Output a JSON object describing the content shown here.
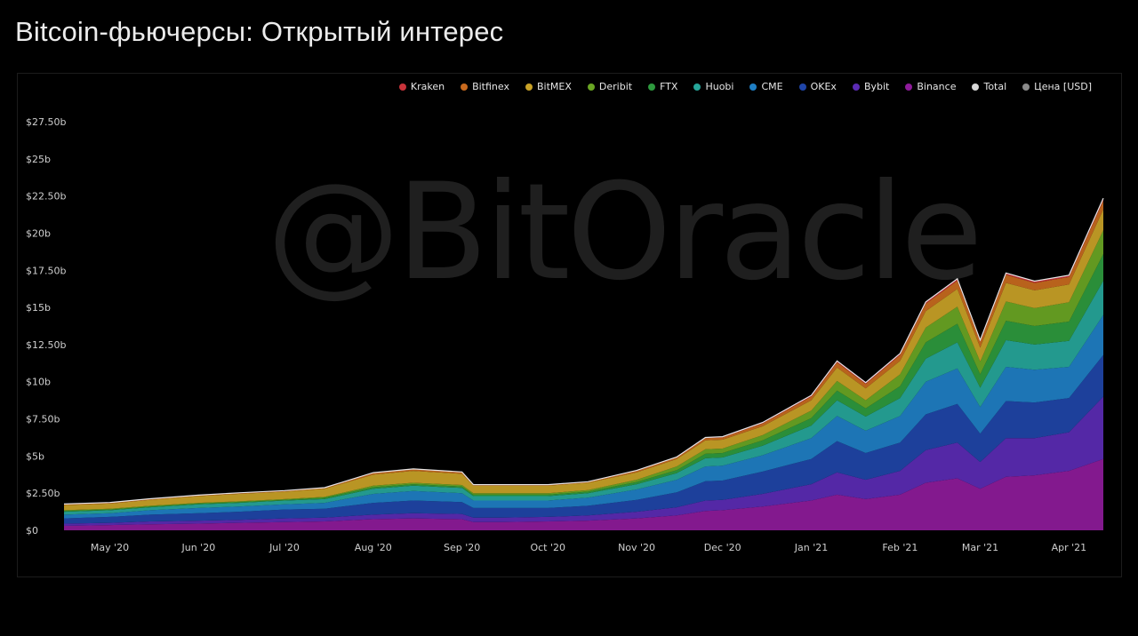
{
  "page": {
    "title": "Bitcoin-фьючерсы: Открытый интерес",
    "watermark": "@BitOracle"
  },
  "legend": [
    {
      "label": "Kraken",
      "color": "#c8333a",
      "icon": "circle-icon"
    },
    {
      "label": "Bitfinex",
      "color": "#c86a1e",
      "icon": "circle-icon"
    },
    {
      "label": "BitMEX",
      "color": "#c9a227",
      "icon": "circle-icon"
    },
    {
      "label": "Deribit",
      "color": "#6aa624",
      "icon": "circle-icon"
    },
    {
      "label": "FTX",
      "color": "#2e9a3e",
      "icon": "circle-icon"
    },
    {
      "label": "Huobi",
      "color": "#26a69a",
      "icon": "circle-icon"
    },
    {
      "label": "CME",
      "color": "#1f7fc4",
      "icon": "circle-icon"
    },
    {
      "label": "OKEx",
      "color": "#1f45a8",
      "icon": "circle-icon"
    },
    {
      "label": "Bybit",
      "color": "#5b2bb4",
      "icon": "circle-icon"
    },
    {
      "label": "Binance",
      "color": "#8e1b9a",
      "icon": "circle-icon"
    },
    {
      "label": "Total",
      "color": "#d9d9d9",
      "icon": "circle-icon"
    },
    {
      "label": "Цена [USD]",
      "color": "#8a8a8a",
      "icon": "circle-icon"
    }
  ],
  "chart_data": {
    "type": "area",
    "stacked": true,
    "title": "Bitcoin-фьючерсы: Открытый интерес",
    "xlabel": "",
    "ylabel": "",
    "ylim": [
      0,
      27.5
    ],
    "y_unit": "billion USD",
    "y_ticks": [
      0,
      2.5,
      5,
      7.5,
      10,
      12.5,
      15,
      17.5,
      20,
      22.5,
      25,
      27.5
    ],
    "y_tick_labels": [
      "$0",
      "$2.50b",
      "$5b",
      "$7.50b",
      "$10b",
      "$12.50b",
      "$15b",
      "$17.50b",
      "$20b",
      "$22.50b",
      "$25b",
      "$27.50b"
    ],
    "x_tick_labels": [
      "May '20",
      "Jun '20",
      "Jul '20",
      "Aug '20",
      "Sep '20",
      "Oct '20",
      "Nov '20",
      "Dec '20",
      "Jan '21",
      "Feb '21",
      "Mar '21",
      "Apr '21"
    ],
    "x_tick_dates": [
      "2020-05-01",
      "2020-06-01",
      "2020-07-01",
      "2020-08-01",
      "2020-09-01",
      "2020-10-01",
      "2020-11-01",
      "2020-12-01",
      "2021-01-01",
      "2021-02-01",
      "2021-03-01",
      "2021-04-01"
    ],
    "x_range": [
      "2020-04-15",
      "2021-04-13"
    ],
    "grid": false,
    "legend_position": "top-right",
    "x": [
      "2020-04-15",
      "2020-05-01",
      "2020-05-15",
      "2020-06-01",
      "2020-06-15",
      "2020-07-01",
      "2020-07-15",
      "2020-08-01",
      "2020-08-15",
      "2020-09-01",
      "2020-09-05",
      "2020-09-15",
      "2020-10-01",
      "2020-10-15",
      "2020-11-01",
      "2020-11-15",
      "2020-11-25",
      "2020-12-01",
      "2020-12-15",
      "2021-01-01",
      "2021-01-10",
      "2021-01-20",
      "2021-02-01",
      "2021-02-10",
      "2021-02-21",
      "2021-03-01",
      "2021-03-10",
      "2021-03-20",
      "2021-04-01",
      "2021-04-13"
    ],
    "series": [
      {
        "name": "Binance",
        "color": "#8e1b9a",
        "values": [
          0.3,
          0.35,
          0.4,
          0.45,
          0.5,
          0.55,
          0.6,
          0.75,
          0.8,
          0.75,
          0.55,
          0.55,
          0.6,
          0.65,
          0.8,
          1.0,
          1.3,
          1.35,
          1.6,
          2.0,
          2.4,
          2.1,
          2.4,
          3.2,
          3.5,
          2.8,
          3.6,
          3.7,
          4.0,
          4.8
        ]
      },
      {
        "name": "Bybit",
        "color": "#5b2bb4",
        "values": [
          0.15,
          0.15,
          0.2,
          0.2,
          0.2,
          0.25,
          0.25,
          0.3,
          0.35,
          0.35,
          0.3,
          0.3,
          0.3,
          0.35,
          0.45,
          0.55,
          0.7,
          0.7,
          0.85,
          1.1,
          1.5,
          1.3,
          1.6,
          2.2,
          2.4,
          1.8,
          2.6,
          2.5,
          2.6,
          4.2
        ]
      },
      {
        "name": "OKEx",
        "color": "#1f45a8",
        "values": [
          0.35,
          0.4,
          0.45,
          0.5,
          0.55,
          0.6,
          0.6,
          0.8,
          0.85,
          0.8,
          0.65,
          0.65,
          0.6,
          0.65,
          0.8,
          1.0,
          1.3,
          1.3,
          1.5,
          1.7,
          2.1,
          1.8,
          1.9,
          2.4,
          2.6,
          1.9,
          2.5,
          2.4,
          2.3,
          2.8
        ]
      },
      {
        "name": "CME",
        "color": "#1f7fc4",
        "values": [
          0.25,
          0.25,
          0.3,
          0.35,
          0.35,
          0.35,
          0.4,
          0.6,
          0.65,
          0.6,
          0.5,
          0.5,
          0.5,
          0.55,
          0.7,
          0.85,
          1.0,
          1.0,
          1.1,
          1.4,
          1.7,
          1.5,
          1.8,
          2.2,
          2.4,
          1.8,
          2.3,
          2.2,
          2.1,
          2.7
        ]
      },
      {
        "name": "Huobi",
        "color": "#26a69a",
        "values": [
          0.2,
          0.2,
          0.2,
          0.25,
          0.25,
          0.25,
          0.25,
          0.35,
          0.35,
          0.35,
          0.3,
          0.3,
          0.3,
          0.3,
          0.35,
          0.45,
          0.55,
          0.55,
          0.65,
          0.85,
          1.05,
          0.95,
          1.2,
          1.55,
          1.75,
          1.3,
          1.8,
          1.7,
          1.75,
          2.3
        ]
      },
      {
        "name": "FTX",
        "color": "#2e9a3e",
        "values": [
          0.05,
          0.05,
          0.05,
          0.05,
          0.05,
          0.05,
          0.1,
          0.1,
          0.1,
          0.1,
          0.1,
          0.1,
          0.1,
          0.1,
          0.15,
          0.2,
          0.3,
          0.3,
          0.35,
          0.5,
          0.65,
          0.55,
          0.8,
          1.1,
          1.25,
          0.9,
          1.3,
          1.25,
          1.3,
          1.8
        ]
      },
      {
        "name": "Deribit",
        "color": "#6aa624",
        "values": [
          0.05,
          0.05,
          0.05,
          0.05,
          0.05,
          0.05,
          0.05,
          0.1,
          0.1,
          0.1,
          0.1,
          0.1,
          0.1,
          0.1,
          0.15,
          0.25,
          0.3,
          0.3,
          0.35,
          0.5,
          0.65,
          0.55,
          0.8,
          1.0,
          1.15,
          0.85,
          1.3,
          1.2,
          1.3,
          1.6
        ]
      },
      {
        "name": "BitMEX",
        "color": "#c9a227",
        "values": [
          0.35,
          0.35,
          0.4,
          0.45,
          0.5,
          0.5,
          0.55,
          0.75,
          0.8,
          0.75,
          0.5,
          0.5,
          0.5,
          0.5,
          0.5,
          0.5,
          0.6,
          0.6,
          0.6,
          0.7,
          0.9,
          0.8,
          0.9,
          1.1,
          1.2,
          0.95,
          1.25,
          1.2,
          1.2,
          1.4
        ]
      },
      {
        "name": "Bitfinex",
        "color": "#c86a1e",
        "values": [
          0.05,
          0.05,
          0.05,
          0.05,
          0.05,
          0.05,
          0.05,
          0.1,
          0.1,
          0.1,
          0.05,
          0.05,
          0.05,
          0.05,
          0.1,
          0.1,
          0.15,
          0.15,
          0.2,
          0.25,
          0.35,
          0.3,
          0.4,
          0.5,
          0.55,
          0.4,
          0.55,
          0.5,
          0.5,
          0.6
        ]
      },
      {
        "name": "Kraken",
        "color": "#c8333a",
        "values": [
          0.02,
          0.02,
          0.02,
          0.02,
          0.02,
          0.02,
          0.02,
          0.03,
          0.03,
          0.03,
          0.02,
          0.02,
          0.02,
          0.02,
          0.03,
          0.04,
          0.05,
          0.05,
          0.06,
          0.08,
          0.1,
          0.09,
          0.1,
          0.12,
          0.13,
          0.1,
          0.12,
          0.12,
          0.12,
          0.15
        ]
      }
    ]
  }
}
